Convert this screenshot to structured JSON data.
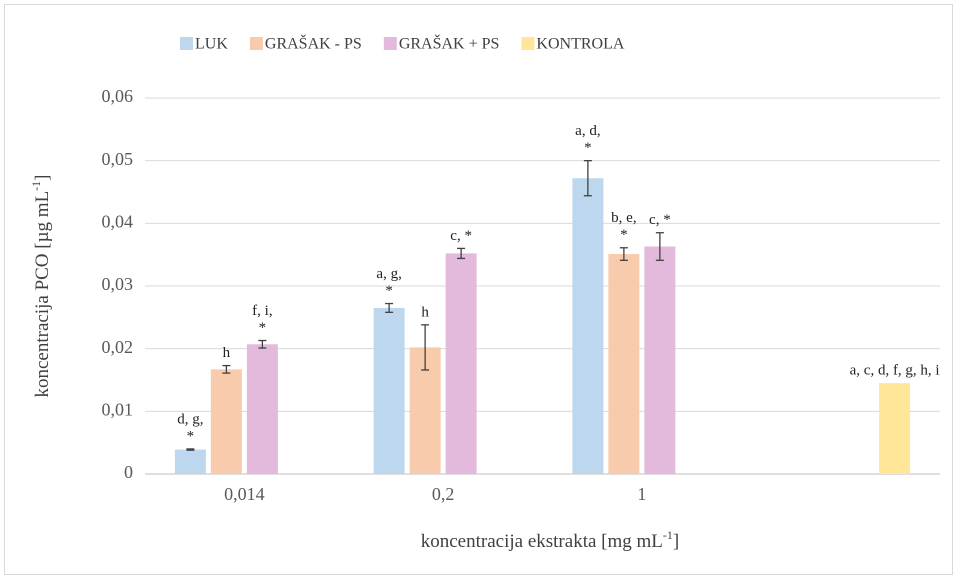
{
  "chart_data": {
    "type": "bar",
    "categories": [
      "0,014",
      "0,2",
      "1",
      null
    ],
    "series": [
      {
        "name": "LUK",
        "color": "#bdd7ee",
        "values": [
          0.0039,
          0.0265,
          0.0472,
          null
        ],
        "errors": [
          0.0001,
          0.0007,
          0.0028,
          null
        ],
        "labels": [
          [
            "d, g,",
            "*"
          ],
          [
            "a, g,",
            "*"
          ],
          [
            "a, d,",
            "*"
          ],
          null
        ]
      },
      {
        "name": "GRAŠAK - PS",
        "color": "#f8cbad",
        "values": [
          0.0167,
          0.0202,
          0.0351,
          null
        ],
        "errors": [
          0.0006,
          0.0036,
          0.001,
          null
        ],
        "labels": [
          [
            "h"
          ],
          [
            "h"
          ],
          [
            "b, e,",
            "*"
          ],
          null
        ]
      },
      {
        "name": "GRAŠAK + PS",
        "color": "#e3b9dc",
        "values": [
          0.0207,
          0.0352,
          0.0363,
          null
        ],
        "errors": [
          0.0006,
          0.0008,
          0.0022,
          null
        ],
        "labels": [
          [
            "f, i,",
            "*"
          ],
          [
            "c, *"
          ],
          [
            "c, *"
          ],
          null
        ]
      },
      {
        "name": "KONTROLA",
        "color": "#ffe699",
        "values": [
          null,
          null,
          null,
          0.0145
        ],
        "errors": [
          null,
          null,
          null,
          null
        ],
        "labels": [
          null,
          null,
          null,
          [
            "a, c, d, f, g, h, i"
          ]
        ]
      }
    ],
    "ylim": [
      0,
      0.06
    ],
    "yticks": [
      0,
      {
        "value": 0.01,
        "label": "0,01"
      },
      {
        "value": 0.02,
        "label": "0,02"
      },
      {
        "value": 0.03,
        "label": "0,03"
      },
      {
        "value": 0.04,
        "label": "0,04"
      },
      {
        "value": 0.05,
        "label": "0,05"
      },
      {
        "value": 0.06,
        "label": "0,06"
      }
    ],
    "ylabel": {
      "text": "koncentracija PCO [µg mL",
      "sup": "-1",
      "end": "]"
    },
    "xlabel": {
      "text": "koncentracija ekstrakta [mg mL",
      "sup": "-1",
      "end": "]"
    },
    "grid": true,
    "legend": "top"
  }
}
